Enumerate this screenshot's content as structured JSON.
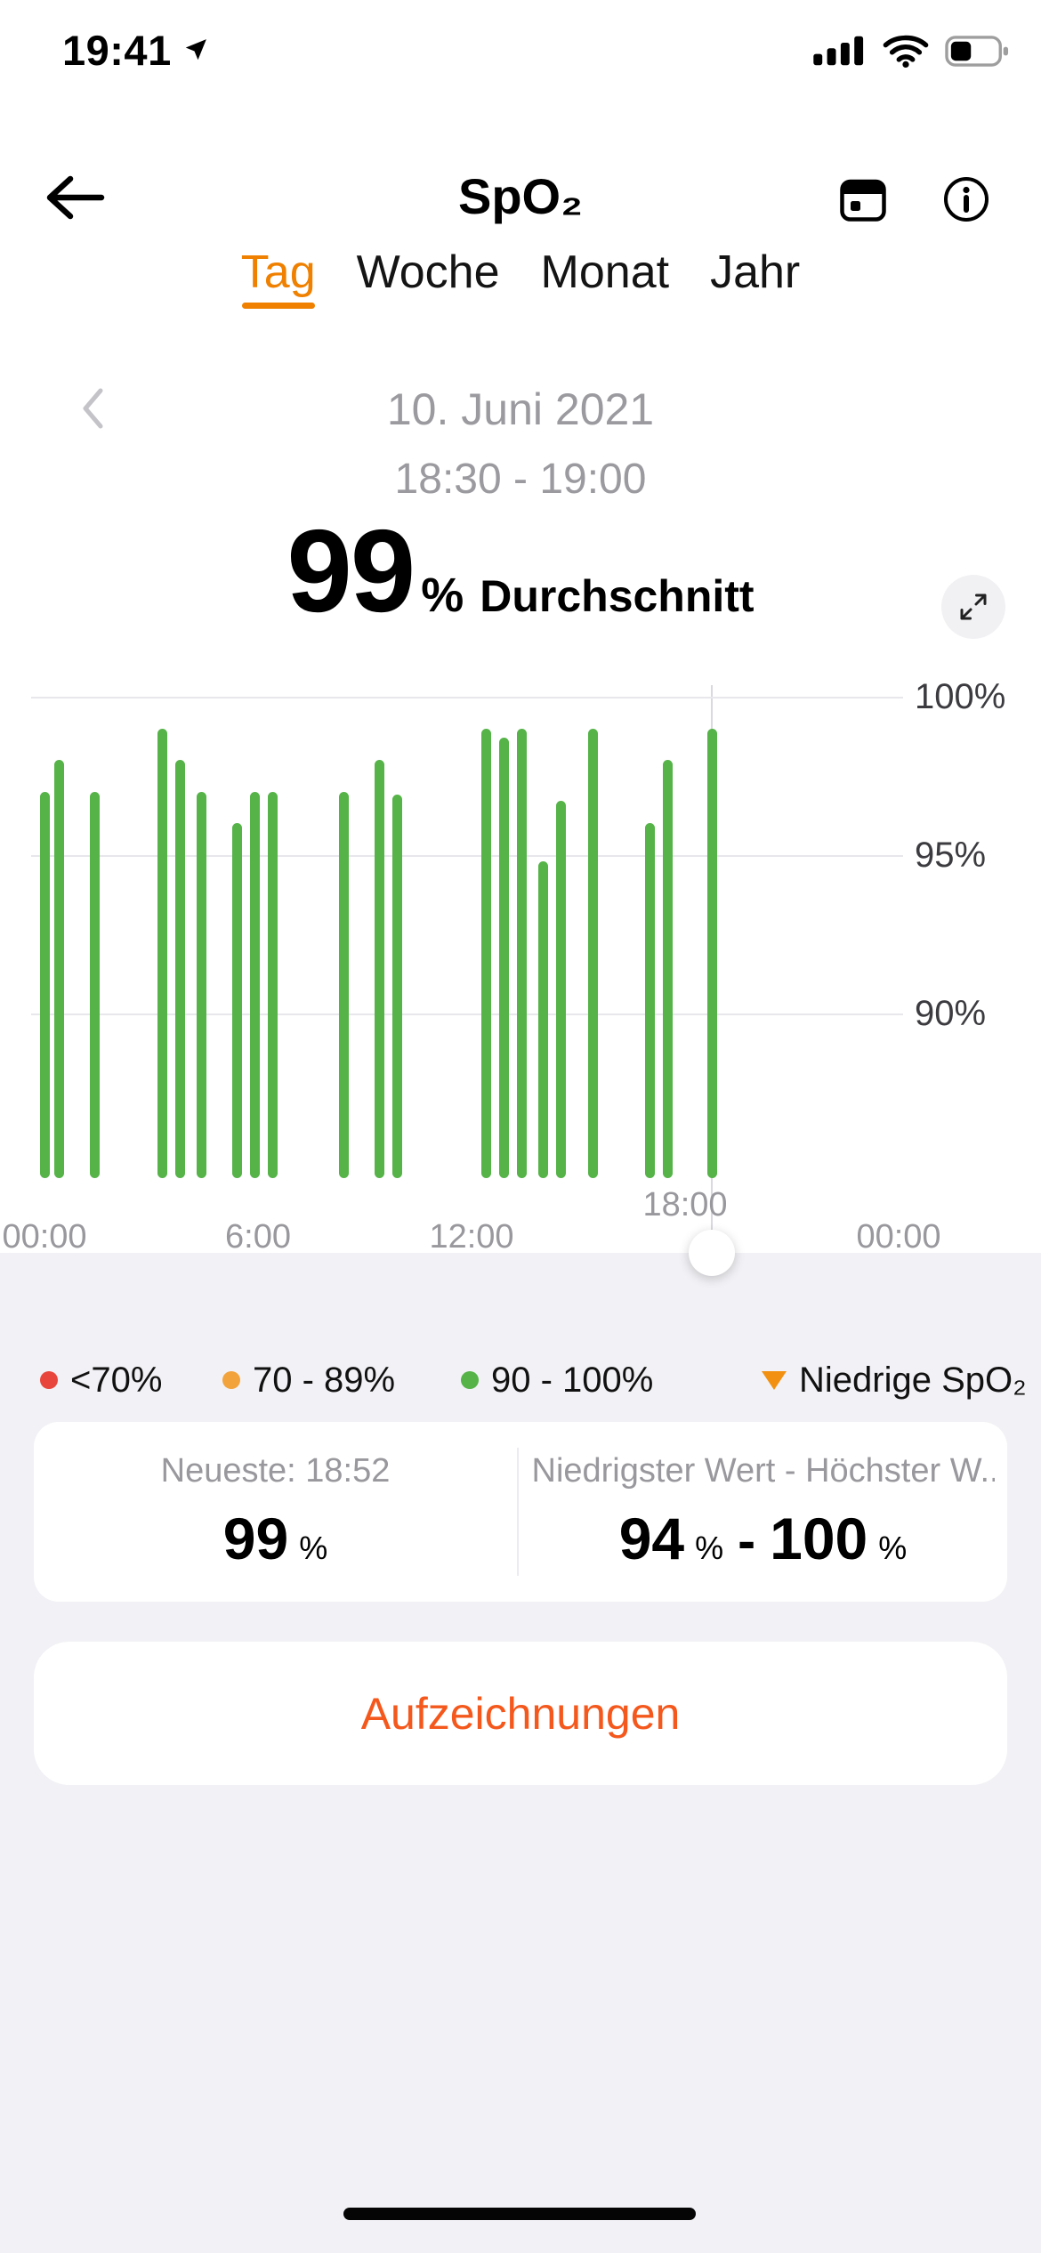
{
  "status_bar": {
    "time": "19:41"
  },
  "header": {
    "title": "SpO₂"
  },
  "tabs": [
    {
      "label": "Tag",
      "active": true
    },
    {
      "label": "Woche",
      "active": false
    },
    {
      "label": "Monat",
      "active": false
    },
    {
      "label": "Jahr",
      "active": false
    }
  ],
  "date_nav": {
    "date": "10. Juni 2021",
    "time_range": "18:30 - 19:00"
  },
  "summary": {
    "value": "99",
    "unit": "%",
    "label": "Durchschnitt"
  },
  "chart_data": {
    "type": "bar",
    "title": "",
    "unit": "%",
    "xlim_hours": [
      0,
      24
    ],
    "ylim": [
      85,
      100
    ],
    "grid": true,
    "bar_color": "#55b348",
    "cursor_hour": 18.75,
    "x_ticks": [
      {
        "label": "00:00",
        "hour": 0
      },
      {
        "label": "6:00",
        "hour": 6
      },
      {
        "label": "12:00",
        "hour": 12
      },
      {
        "label": "18:00",
        "hour": 18,
        "raised": true
      },
      {
        "label": "00:00",
        "hour": 24
      }
    ],
    "y_ticks": [
      {
        "label": "100%",
        "value": 100
      },
      {
        "label": "95%",
        "value": 95
      },
      {
        "label": "90%",
        "value": 90
      }
    ],
    "bars": [
      {
        "hour": 0.0,
        "value": 97
      },
      {
        "hour": 0.4,
        "value": 98
      },
      {
        "hour": 1.4,
        "value": 97
      },
      {
        "hour": 3.3,
        "value": 99
      },
      {
        "hour": 3.8,
        "value": 98
      },
      {
        "hour": 4.4,
        "value": 97
      },
      {
        "hour": 5.4,
        "value": 96
      },
      {
        "hour": 5.9,
        "value": 97
      },
      {
        "hour": 6.4,
        "value": 97
      },
      {
        "hour": 8.4,
        "value": 97
      },
      {
        "hour": 9.4,
        "value": 98
      },
      {
        "hour": 9.9,
        "value": 96.9
      },
      {
        "hour": 12.4,
        "value": 99
      },
      {
        "hour": 12.9,
        "value": 98.7
      },
      {
        "hour": 13.4,
        "value": 99
      },
      {
        "hour": 14.0,
        "value": 94.8
      },
      {
        "hour": 14.5,
        "value": 96.7
      },
      {
        "hour": 15.4,
        "value": 99
      },
      {
        "hour": 17.0,
        "value": 96
      },
      {
        "hour": 17.5,
        "value": 98
      },
      {
        "hour": 18.75,
        "value": 99
      }
    ]
  },
  "legend": [
    {
      "label": "<70%",
      "shape": "dot",
      "color": "#e8463c"
    },
    {
      "label": "70 - 89%",
      "shape": "dot",
      "color": "#f2a33c"
    },
    {
      "label": "90 - 100%",
      "shape": "dot",
      "color": "#55b348"
    },
    {
      "label": "Niedrige SpO₂",
      "shape": "triangle",
      "color": "#f29111"
    }
  ],
  "stats_card": {
    "left": {
      "label": "Neueste: 18:52",
      "value": "99",
      "unit": "%"
    },
    "right": {
      "label": "Niedrigster Wert - Höchster W...",
      "min": "94",
      "max": "100",
      "unit": "%",
      "separator": "-"
    }
  },
  "records_button": {
    "label": "Aufzeichnungen"
  },
  "icons": {
    "back": "←",
    "chevron_left": "‹",
    "calendar": "calendar",
    "info": "i",
    "expand": "expand-diagonal",
    "location": "➤"
  },
  "colors": {
    "accent_tab": "#ef8000",
    "button_text": "#f4581c",
    "bar_green": "#55b348",
    "legend_red": "#e8463c",
    "legend_orange": "#f2a33c",
    "legend_green": "#55b348",
    "triangle_orange": "#f29111",
    "muted_text": "#9a9a9f",
    "section_bg": "#f2f2f6"
  }
}
